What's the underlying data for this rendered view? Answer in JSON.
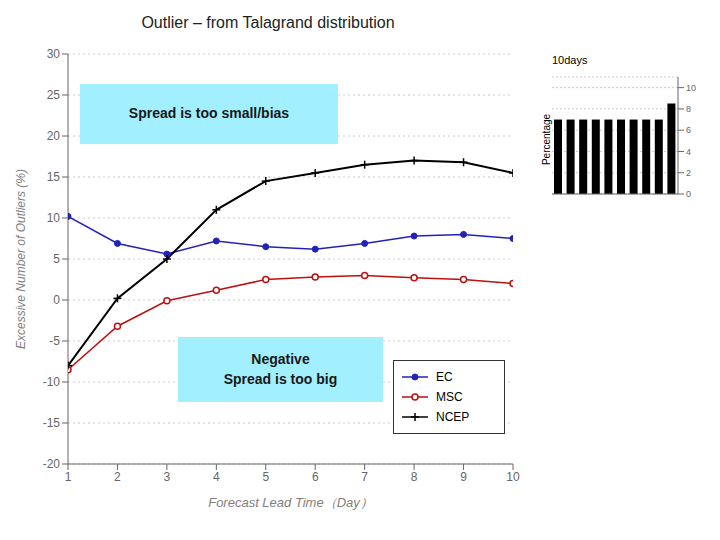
{
  "chart_data": [
    {
      "type": "line",
      "title": "Outlier – from Talagrand distribution",
      "x_label": "Forecast Lead Time（Day）",
      "y_label": "Excessive Number of Outliers (%)",
      "x": [
        1,
        2,
        3,
        4,
        5,
        6,
        7,
        8,
        9,
        10
      ],
      "series": [
        {
          "name": "EC",
          "color": "#2222bb",
          "marker": "circle",
          "values": [
            10.2,
            6.9,
            5.6,
            7.2,
            6.5,
            6.2,
            6.9,
            7.8,
            8.0,
            7.5
          ]
        },
        {
          "name": "MSC",
          "color": "#bb1111",
          "marker": "circle_open",
          "values": [
            -8.5,
            -3.2,
            -0.1,
            1.2,
            2.5,
            2.8,
            3.0,
            2.7,
            2.5,
            2.0
          ]
        },
        {
          "name": "NCEP",
          "color": "#000000",
          "marker": "plus",
          "values": [
            -8.0,
            0.2,
            5.0,
            11.0,
            14.5,
            15.5,
            16.5,
            17.0,
            16.8,
            15.5
          ]
        }
      ],
      "xlim": [
        1,
        10
      ],
      "ylim": [
        -20,
        30
      ],
      "xticks": [
        1,
        2,
        3,
        4,
        5,
        6,
        7,
        8,
        9,
        10
      ],
      "yticks": [
        -20,
        -15,
        -10,
        -5,
        0,
        5,
        10,
        15,
        20,
        25,
        30
      ],
      "grid": true,
      "annotations": [
        "Spread is too small/bias",
        "Negative\nSpread is too big"
      ]
    },
    {
      "type": "bar",
      "title": "10days",
      "y_label": "Percentage",
      "x": [
        1,
        2,
        3,
        4,
        5,
        6,
        7,
        8,
        9,
        10
      ],
      "values": [
        7,
        7,
        7,
        7,
        7,
        7,
        7,
        7,
        7,
        8.5
      ],
      "color": "#000000",
      "xlim": [
        0.5,
        10.5
      ],
      "ylim": [
        0,
        11
      ],
      "xticks": [],
      "yticks": [
        0,
        2,
        4,
        6,
        8,
        10
      ],
      "grid": true,
      "tick_labels": "y"
    }
  ]
}
